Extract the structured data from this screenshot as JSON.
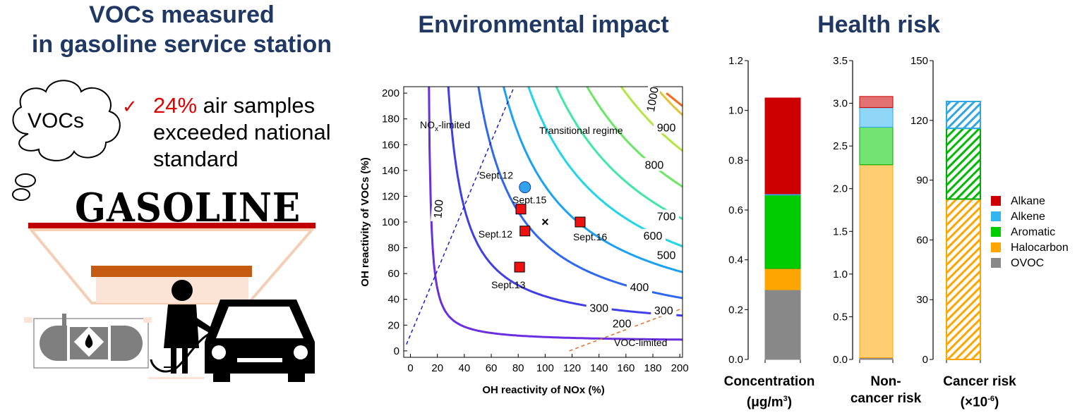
{
  "left": {
    "title_line1": "VOCs measured",
    "title_line2": "in gasoline service station",
    "cloud_text": "VOCs",
    "bullet_pct": "24%",
    "bullet_rest1": " air samples",
    "bullet_line2": "exceeded national",
    "bullet_line3": "standard",
    "sign_text": "GASOLINE",
    "colors": {
      "title": "#1f3864",
      "accent": "#e00000",
      "roof": "#c00000",
      "counter": "#c55a11"
    }
  },
  "middle": {
    "title": "Environmental impact",
    "xlabel": "OH reactivity of NOx (%)",
    "ylabel": "OH reactivity of VOCs (%)",
    "region_nox": "NO",
    "region_nox_sub": "x",
    "region_nox_rest": "-limited",
    "region_trans": "Transitional regime",
    "region_voc": "VOC-limited",
    "contour_labels": [
      "100",
      "200",
      "300",
      "300",
      "400",
      "500",
      "600",
      "700",
      "800",
      "900",
      "1000"
    ],
    "point_labels": [
      "Sept.12",
      "Sept.15",
      "Sept.12",
      "Sept.16",
      "Sept.13"
    ]
  },
  "right": {
    "title": "Health risk",
    "xlabels": [
      {
        "line1": "Concentration",
        "line2": "(μg/m",
        "sup": "3",
        "line2_end": ")"
      },
      {
        "line1": "Non-",
        "line2": "cancer risk",
        "sup": "",
        "line2_end": ""
      },
      {
        "line1": "Cancer risk",
        "line2": "(×10",
        "sup": "-6",
        "line2_end": ")"
      }
    ],
    "legend": [
      {
        "name": "Alkane",
        "color": "#cc0000"
      },
      {
        "name": "Alkene",
        "color": "#33b5f0"
      },
      {
        "name": "Aromatic",
        "color": "#00cc00"
      },
      {
        "name": "Halocarbon",
        "color": "#ffa500"
      },
      {
        "name": "OVOC",
        "color": "#888888"
      }
    ]
  },
  "chart_data": [
    {
      "type": "scatter",
      "title": "Environmental impact",
      "xlabel": "OH reactivity of NOx (%)",
      "ylabel": "OH reactivity of VOCs (%)",
      "xlim": [
        -5,
        202
      ],
      "ylim": [
        -5,
        205
      ],
      "xticks": [
        "0",
        "20",
        "40",
        "60",
        "80",
        "100",
        "120",
        "140",
        "160",
        "180",
        "200"
      ],
      "yticks": [
        "0",
        "20",
        "40",
        "60",
        "80",
        "100",
        "120",
        "140",
        "160",
        "180",
        "200"
      ],
      "contour_levels": [
        100,
        200,
        300,
        400,
        500,
        600,
        700,
        800,
        900,
        1000
      ],
      "points": [
        {
          "label": "Sept.12",
          "x": 85,
          "y": 127,
          "marker": "circle",
          "color": "#33a3ee"
        },
        {
          "label": "Sept.15",
          "x": 82,
          "y": 110,
          "marker": "square",
          "color": "#ee1111"
        },
        {
          "label": "Sept.12",
          "x": 85,
          "y": 93,
          "marker": "square",
          "color": "#ee1111"
        },
        {
          "label": "Sept.16",
          "x": 126,
          "y": 100,
          "marker": "square",
          "color": "#ee1111"
        },
        {
          "label": "Sept.13",
          "x": 81,
          "y": 65,
          "marker": "square",
          "color": "#ee1111"
        },
        {
          "label": "",
          "x": 100,
          "y": 100,
          "marker": "x",
          "color": "#000000"
        }
      ],
      "ridge_lines": [
        {
          "name": "NOx-limited",
          "from": [
            -3,
            5
          ],
          "to": [
            77,
            205
          ]
        },
        {
          "name": "VOC-limited",
          "from": [
            118,
            0
          ],
          "to": [
            202,
            33
          ]
        }
      ]
    },
    {
      "type": "bar",
      "title": "Health risk",
      "categories": [
        "Concentration (μg/m3)",
        "Non-cancer risk",
        "Cancer risk (×10-6)"
      ],
      "stacked": true,
      "panels": [
        {
          "category": "Concentration (μg/m3)",
          "ylim": [
            0,
            1.2
          ],
          "yticks": [
            "0.0",
            "0.2",
            "0.4",
            "0.6",
            "0.8",
            "1.0",
            "1.2"
          ],
          "segments": [
            {
              "name": "OVOC",
              "value": 0.28
            },
            {
              "name": "Halocarbon",
              "value": 0.085
            },
            {
              "name": "Aromatic",
              "value": 0.295
            },
            {
              "name": "Alkene",
              "value": 0.005
            },
            {
              "name": "Alkane",
              "value": 0.385
            }
          ]
        },
        {
          "category": "Non-cancer risk",
          "ylim": [
            0,
            3.5
          ],
          "yticks": [
            "0.0",
            "0.5",
            "1.0",
            "1.5",
            "2.0",
            "2.5",
            "3.0",
            "3.5"
          ],
          "segments": [
            {
              "name": "OVOC",
              "value": 0.02
            },
            {
              "name": "Halocarbon",
              "value": 2.26
            },
            {
              "name": "Aromatic",
              "value": 0.44
            },
            {
              "name": "Alkene",
              "value": 0.23
            },
            {
              "name": "Alkane",
              "value": 0.13
            }
          ]
        },
        {
          "category": "Cancer risk (×10-6)",
          "ylim": [
            0,
            150
          ],
          "yticks": [
            "0",
            "30",
            "60",
            "90",
            "120",
            "150"
          ],
          "hatched": true,
          "segments": [
            {
              "name": "OVOC",
              "value": 0
            },
            {
              "name": "Halocarbon",
              "value": 80.5
            },
            {
              "name": "Aromatic",
              "value": 35.5
            },
            {
              "name": "Alkene",
              "value": 0
            },
            {
              "name": "Alkane",
              "value": 0
            },
            {
              "name": "Alkene",
              "value": 13.5
            }
          ]
        }
      ],
      "legend_position": "right"
    }
  ]
}
